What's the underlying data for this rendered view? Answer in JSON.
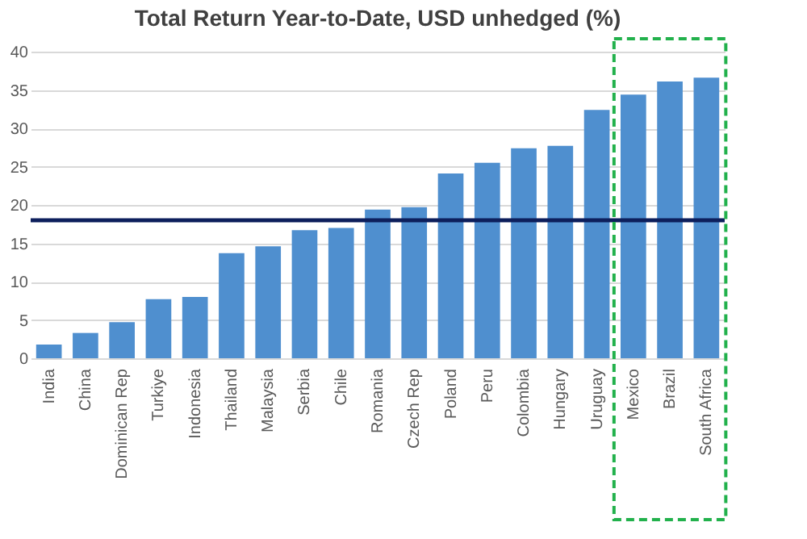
{
  "chart_data": {
    "type": "bar",
    "title": "Total Return Year-to-Date, USD unhedged (%)",
    "categories": [
      "India",
      "China",
      "Dominican Rep",
      "Turkiye",
      "Indonesia",
      "Thailand",
      "Malaysia",
      "Serbia",
      "Chile",
      "Romania",
      "Czech Rep",
      "Poland",
      "Peru",
      "Colombia",
      "Hungary",
      "Uruguay",
      "Mexico",
      "Brazil",
      "South Africa"
    ],
    "values": [
      1.8,
      3.3,
      4.7,
      7.7,
      8.0,
      13.7,
      14.6,
      16.7,
      17.0,
      19.4,
      19.7,
      24.1,
      25.5,
      27.4,
      27.7,
      32.4,
      34.4,
      36.1,
      36.6
    ],
    "color": "#4f8fcf",
    "ylim": [
      0,
      40
    ],
    "yticks": [
      0,
      5,
      10,
      15,
      20,
      25,
      30,
      35,
      40
    ],
    "grid": "y",
    "ref_lines": [
      {
        "axis": "y",
        "value": 18,
        "color": "#0d1f5c"
      }
    ]
  }
}
